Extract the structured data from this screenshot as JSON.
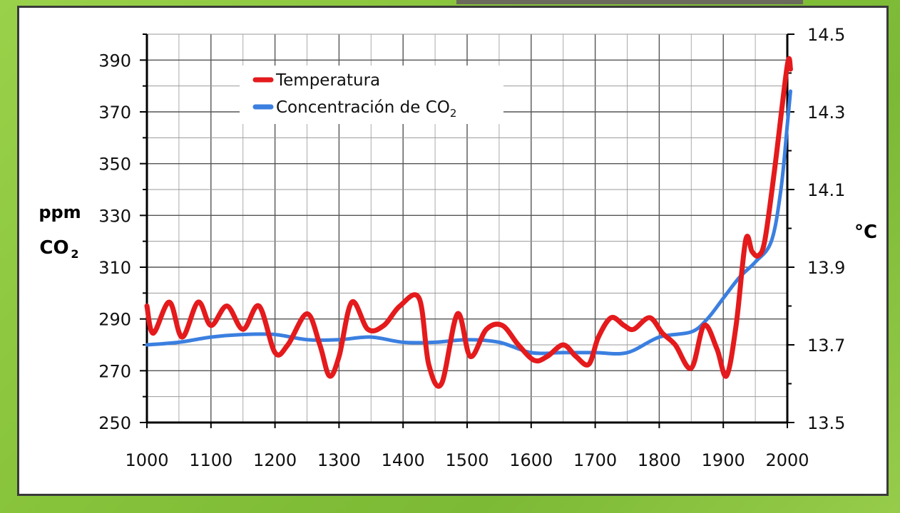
{
  "chart_data": {
    "type": "line",
    "x_range": [
      1000,
      2000
    ],
    "x_ticks": [
      "1000",
      "1100",
      "1200",
      "1300",
      "1400",
      "1500",
      "1600",
      "1700",
      "1800",
      "1900",
      "2000"
    ],
    "left_axis": {
      "label_line1": "ppm",
      "label_line2": "CO",
      "label_sub": "2",
      "ylim": [
        250,
        400
      ],
      "ticks": [
        "250",
        "270",
        "290",
        "310",
        "330",
        "350",
        "370",
        "390"
      ]
    },
    "right_axis": {
      "label": "°C",
      "ylim": [
        13.5,
        14.5
      ],
      "ticks": [
        "13.5",
        "13.7",
        "13.9",
        "14.1",
        "14.3",
        "14.5"
      ]
    },
    "grid": true,
    "legend_position": "top-left",
    "series": [
      {
        "name": "Temperatura",
        "legend_sub": "",
        "axis": "right",
        "color": "#e41a1c",
        "x": [
          1000,
          1010,
          1035,
          1055,
          1080,
          1100,
          1125,
          1150,
          1175,
          1200,
          1220,
          1250,
          1270,
          1285,
          1300,
          1320,
          1345,
          1370,
          1395,
          1425,
          1440,
          1460,
          1485,
          1505,
          1530,
          1555,
          1580,
          1605,
          1625,
          1650,
          1670,
          1690,
          1705,
          1725,
          1745,
          1760,
          1785,
          1805,
          1825,
          1850,
          1870,
          1890,
          1905,
          1920,
          1935,
          1945,
          1955,
          1965,
          1980,
          2000,
          2005
        ],
        "values": [
          13.8,
          13.73,
          13.81,
          13.72,
          13.81,
          13.75,
          13.8,
          13.74,
          13.8,
          13.68,
          13.7,
          13.78,
          13.7,
          13.62,
          13.67,
          13.81,
          13.74,
          13.75,
          13.8,
          13.82,
          13.65,
          13.6,
          13.78,
          13.67,
          13.74,
          13.75,
          13.7,
          13.66,
          13.67,
          13.7,
          13.67,
          13.65,
          13.72,
          13.77,
          13.75,
          13.74,
          13.77,
          13.73,
          13.7,
          13.64,
          13.75,
          13.69,
          13.62,
          13.75,
          13.97,
          13.94,
          13.93,
          13.97,
          14.15,
          14.42,
          14.41
        ]
      },
      {
        "name": "Concentración de CO",
        "legend_sub": "2",
        "axis": "left",
        "color": "#3b7fe0",
        "x": [
          1000,
          1050,
          1100,
          1150,
          1200,
          1250,
          1300,
          1350,
          1400,
          1450,
          1500,
          1550,
          1600,
          1650,
          1700,
          1750,
          1800,
          1850,
          1875,
          1900,
          1925,
          1950,
          1975,
          1990,
          2000,
          2005
        ],
        "values": [
          280,
          281,
          283,
          284,
          284,
          282,
          282,
          283,
          281,
          281,
          282,
          281,
          277,
          277,
          277,
          277,
          283,
          285,
          290,
          298,
          306,
          312,
          320,
          340,
          365,
          378
        ]
      }
    ]
  }
}
